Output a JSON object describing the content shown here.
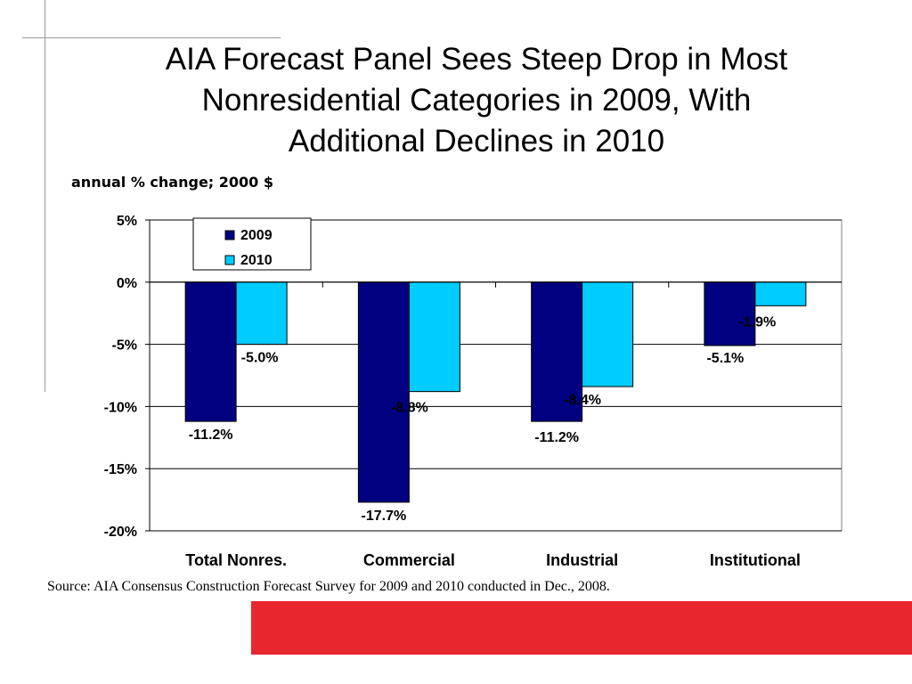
{
  "slide": {
    "title_lines": [
      "AIA Forecast Panel Sees Steep Drop in Most",
      "Nonresidential Categories in 2009, With",
      "Additional Declines in 2010"
    ],
    "subtitle": "annual % change; 2000 $",
    "source": "Source:  AIA Consensus Construction Forecast Survey for 2009 and 2010 conducted in Dec., 2008.",
    "accent_color": "#E8262E"
  },
  "chart_data": {
    "type": "bar",
    "categories": [
      "Total Nonres.",
      "Commercial",
      "Industrial",
      "Institutional"
    ],
    "series": [
      {
        "name": "2009",
        "color": "#000080",
        "values": [
          -11.2,
          -17.7,
          -11.2,
          -5.1
        ],
        "labels": [
          "-11.2%",
          "-17.7%",
          "-11.2%",
          "-5.1%"
        ]
      },
      {
        "name": "2010",
        "color": "#00CCFF",
        "values": [
          -5.0,
          -8.8,
          -8.4,
          -1.9
        ],
        "labels": [
          "-5.0%",
          "-8.8%",
          "-8.4%",
          "-1.9%"
        ]
      }
    ],
    "y_ticks": [
      "5%",
      "0%",
      "-5%",
      "-10%",
      "-15%",
      "-20%"
    ],
    "ylim": [
      -20,
      5
    ],
    "grid": true,
    "legend_position": "top-left"
  }
}
